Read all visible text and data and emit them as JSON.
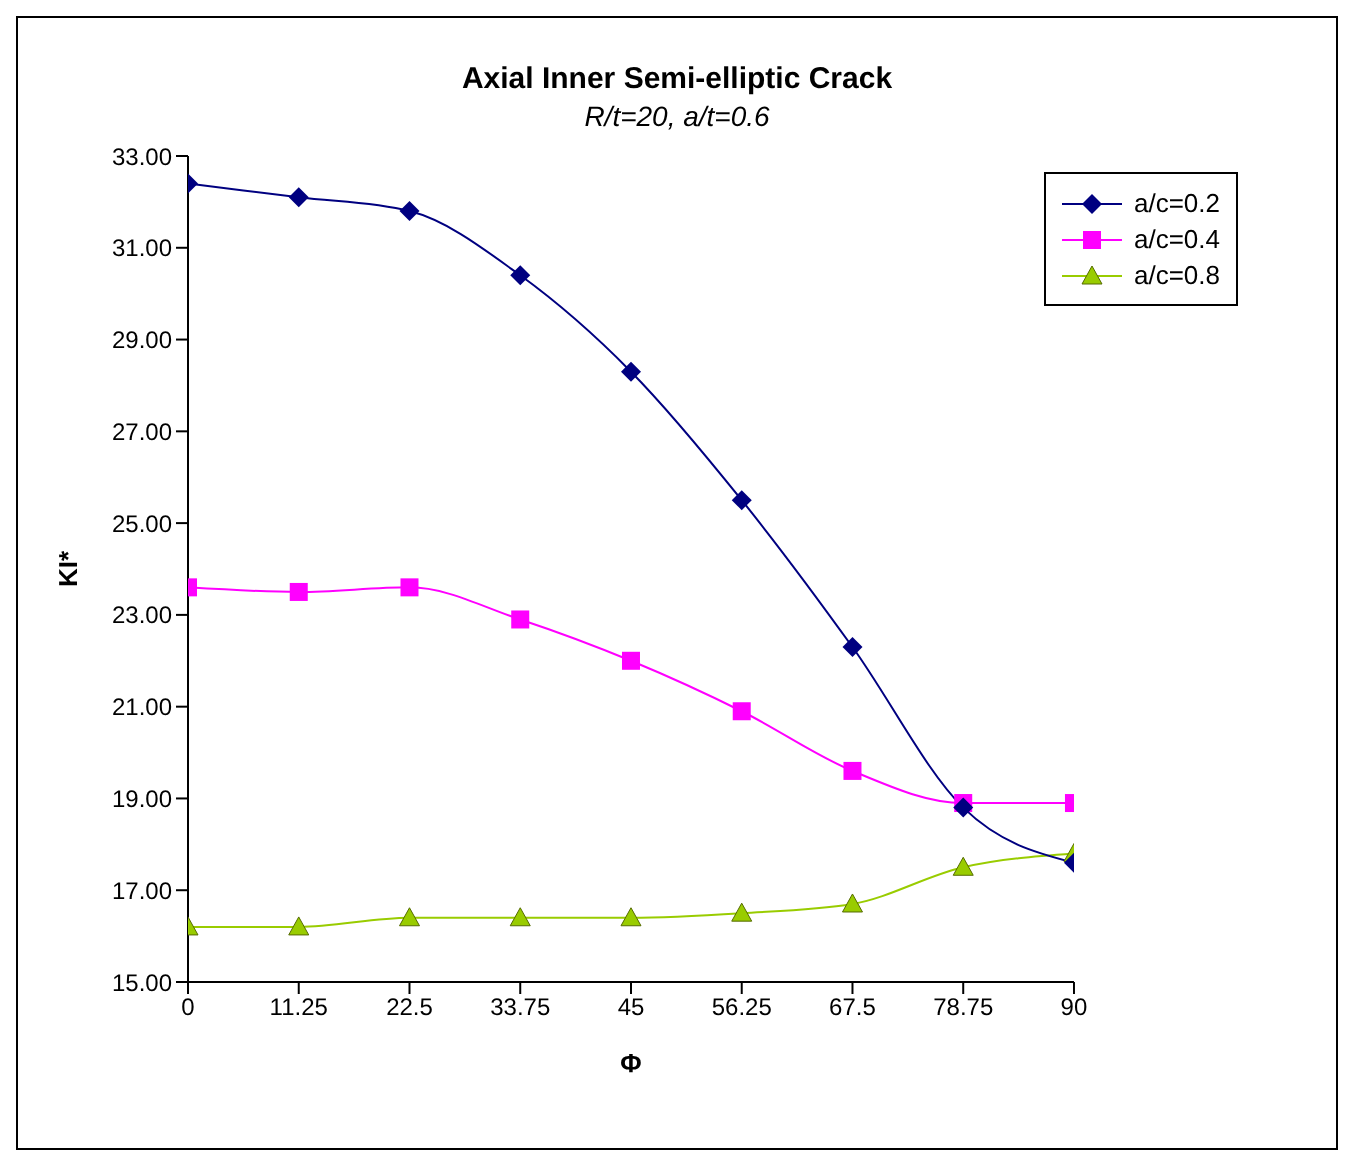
{
  "chart_data": {
    "type": "line",
    "title": "Axial Inner Semi-elliptic Crack",
    "subtitle": "R/t=20, a/t=0.6",
    "xlabel": "Φ",
    "ylabel": "KI*",
    "x": [
      0,
      11.25,
      22.5,
      33.75,
      45,
      56.25,
      67.5,
      78.75,
      90
    ],
    "series": [
      {
        "name": "a/c=0.2",
        "color": "#000080",
        "marker": "diamond",
        "values": [
          32.4,
          32.1,
          31.8,
          30.4,
          28.3,
          25.5,
          22.3,
          18.8,
          17.6
        ]
      },
      {
        "name": "a/c=0.4",
        "color": "#ff00ff",
        "marker": "square",
        "values": [
          23.6,
          23.5,
          23.6,
          22.9,
          22.0,
          20.9,
          19.6,
          18.9,
          18.9
        ]
      },
      {
        "name": "a/c=0.8",
        "color": "#99cc00",
        "marker": "triangle",
        "values": [
          16.2,
          16.2,
          16.4,
          16.4,
          16.4,
          16.5,
          16.7,
          17.5,
          17.8
        ]
      }
    ],
    "xlim": [
      0,
      90
    ],
    "xticks": [
      0,
      11.25,
      22.5,
      33.75,
      45,
      56.25,
      67.5,
      78.75,
      90
    ],
    "ylim": [
      15,
      33
    ],
    "yticks": [
      {
        "value": 15,
        "label": "15.00"
      },
      {
        "value": 17,
        "label": "17.00"
      },
      {
        "value": 19,
        "label": "19.00"
      },
      {
        "value": 21,
        "label": "21.00"
      },
      {
        "value": 23,
        "label": "23.00"
      },
      {
        "value": 25,
        "label": "25.00"
      },
      {
        "value": 27,
        "label": "27.00"
      },
      {
        "value": 29,
        "label": "29.00"
      },
      {
        "value": 31,
        "label": "31.00"
      },
      {
        "value": 33,
        "label": "33.00"
      }
    ],
    "grid": false,
    "legend": "top right",
    "line_style": "solid"
  }
}
